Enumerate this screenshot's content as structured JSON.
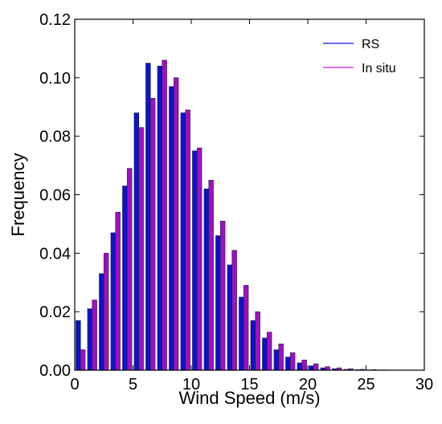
{
  "chart_data": {
    "type": "bar",
    "xlabel": "Wind Speed (m/s)",
    "ylabel": "Frequency",
    "xlim": [
      0,
      30
    ],
    "ylim": [
      0,
      0.12
    ],
    "xticks": [
      0,
      5,
      10,
      15,
      20,
      25,
      30
    ],
    "yticks": [
      0.0,
      0.02,
      0.04,
      0.06,
      0.08,
      0.1,
      0.12
    ],
    "xtick_labels": [
      "0",
      "5",
      "10",
      "15",
      "20",
      "25",
      "30"
    ],
    "ytick_labels": [
      "0.00",
      "0.02",
      "0.04",
      "0.06",
      "0.08",
      "0.10",
      "0.12"
    ],
    "grid": false,
    "legend_position": "top-right",
    "x": [
      0.5,
      1.5,
      2.5,
      3.5,
      4.5,
      5.5,
      6.5,
      7.5,
      8.5,
      9.5,
      10.5,
      11.5,
      12.5,
      13.5,
      14.5,
      15.5,
      16.5,
      17.5,
      18.5,
      19.5,
      20.5,
      21.5,
      22.5,
      23.5,
      24.5,
      25.5,
      26.5,
      27.5,
      28.5,
      29.5
    ],
    "series": [
      {
        "name": "RS",
        "color": "#0a14c8",
        "values": [
          0.017,
          0.021,
          0.033,
          0.047,
          0.063,
          0.088,
          0.105,
          0.104,
          0.097,
          0.088,
          0.075,
          0.062,
          0.046,
          0.036,
          0.025,
          0.017,
          0.011,
          0.007,
          0.0045,
          0.0025,
          0.0015,
          0.0008,
          0.0005,
          0.0003,
          0.0002,
          0.0001,
          0.0001,
          0.0,
          0.0,
          0.0
        ]
      },
      {
        "name": "In situ",
        "color": "#a010c0",
        "values": [
          0.007,
          0.024,
          0.04,
          0.054,
          0.069,
          0.083,
          0.093,
          0.106,
          0.1,
          0.089,
          0.076,
          0.065,
          0.051,
          0.041,
          0.029,
          0.02,
          0.013,
          0.009,
          0.006,
          0.0035,
          0.0022,
          0.0012,
          0.0008,
          0.0005,
          0.0003,
          0.0002,
          0.0001,
          0.0,
          0.0,
          0.0
        ]
      }
    ]
  }
}
